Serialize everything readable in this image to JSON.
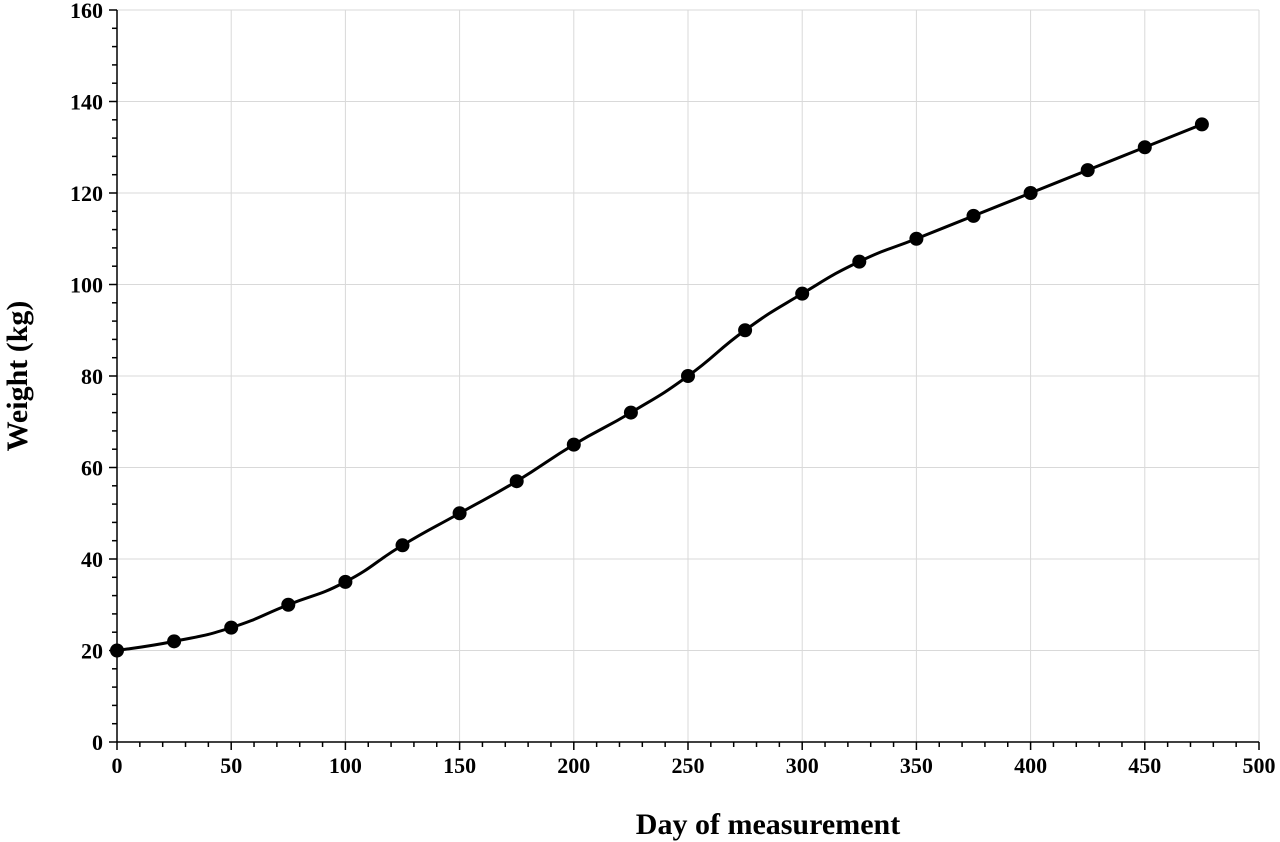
{
  "chart_data": {
    "type": "line",
    "title": "",
    "xlabel": "Day of measurement",
    "ylabel": "Weight (kg)",
    "xlim": [
      0,
      500
    ],
    "ylim": [
      0,
      160
    ],
    "x_ticks": [
      0,
      50,
      100,
      150,
      200,
      250,
      300,
      350,
      400,
      450,
      500
    ],
    "y_ticks": [
      0,
      20,
      40,
      60,
      80,
      100,
      120,
      140,
      160
    ],
    "x_tick_labels": [
      "0",
      "50",
      "100",
      "150",
      "200",
      "250",
      "300",
      "350",
      "400",
      "450",
      "500"
    ],
    "y_tick_labels": [
      "0",
      "20",
      "40",
      "60",
      "80",
      "100",
      "120",
      "140",
      "160"
    ],
    "grid": true,
    "legend": "none",
    "series": [
      {
        "color": "#000000",
        "x": [
          0,
          25,
          50,
          75,
          100,
          125,
          150,
          175,
          200,
          225,
          250,
          275,
          300,
          325,
          350,
          375,
          400,
          425,
          450,
          475
        ],
        "y": [
          20,
          22,
          25,
          30,
          35,
          43,
          50,
          57,
          65,
          72,
          80,
          90,
          98,
          105,
          110,
          115,
          120,
          125,
          130,
          135
        ]
      }
    ]
  }
}
